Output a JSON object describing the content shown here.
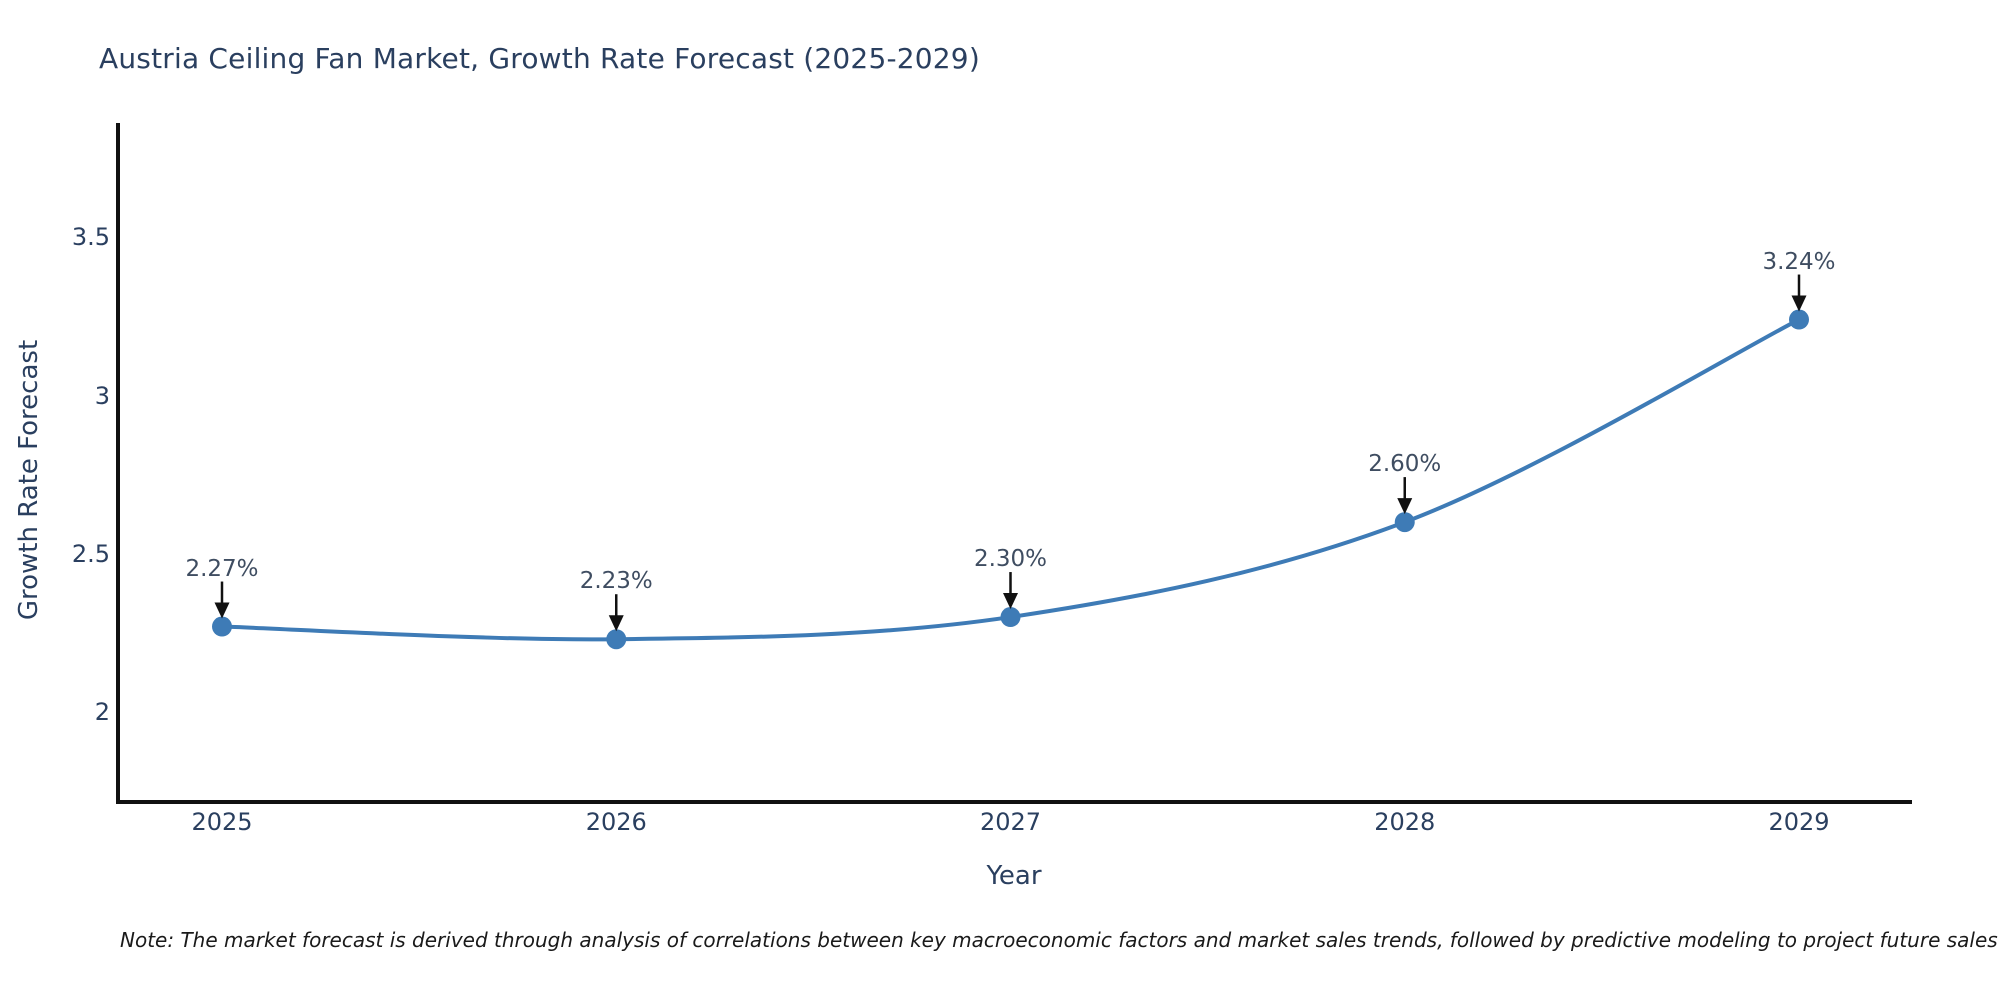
{
  "title": "Austria Ceiling Fan Market, Growth Rate Forecast (2025-2029)",
  "note": "Note: The market forecast is derived through analysis of correlations between key macroeconomic factors and market sales trends, followed by predictive modeling to project future sales",
  "colors": {
    "accent_blue": "#3e7bb6",
    "title_text": "#2a3f5f",
    "tick_text": "#2a3f5f",
    "annotation_text": "#3f4d61",
    "arrow": "#111111",
    "axis_line": "#111111",
    "background": "#ffffff"
  },
  "chart_data": {
    "type": "line",
    "title": "Austria Ceiling Fan Market, Growth Rate Forecast (2025-2029)",
    "x": [
      2025,
      2026,
      2027,
      2028,
      2029
    ],
    "categories": [
      "2025",
      "2026",
      "2027",
      "2028",
      "2029"
    ],
    "series": [
      {
        "name": "Growth Rate Forecast",
        "values": [
          2.27,
          2.23,
          2.3,
          2.6,
          3.24
        ]
      }
    ],
    "point_labels": [
      "2.27%",
      "2.23%",
      "2.30%",
      "2.60%",
      "3.24%"
    ],
    "xlabel": "Year",
    "ylabel": "Growth Rate Forecast",
    "yticks": [
      2,
      2.5,
      3,
      3.5
    ],
    "ytick_labels": [
      "2",
      "2.5",
      "3",
      "3.5"
    ],
    "ylim": [
      1.72,
      3.86
    ],
    "grid": false,
    "legend_visible": false,
    "line_shape": "spline",
    "markers": true,
    "annotation_arrows": "down"
  }
}
